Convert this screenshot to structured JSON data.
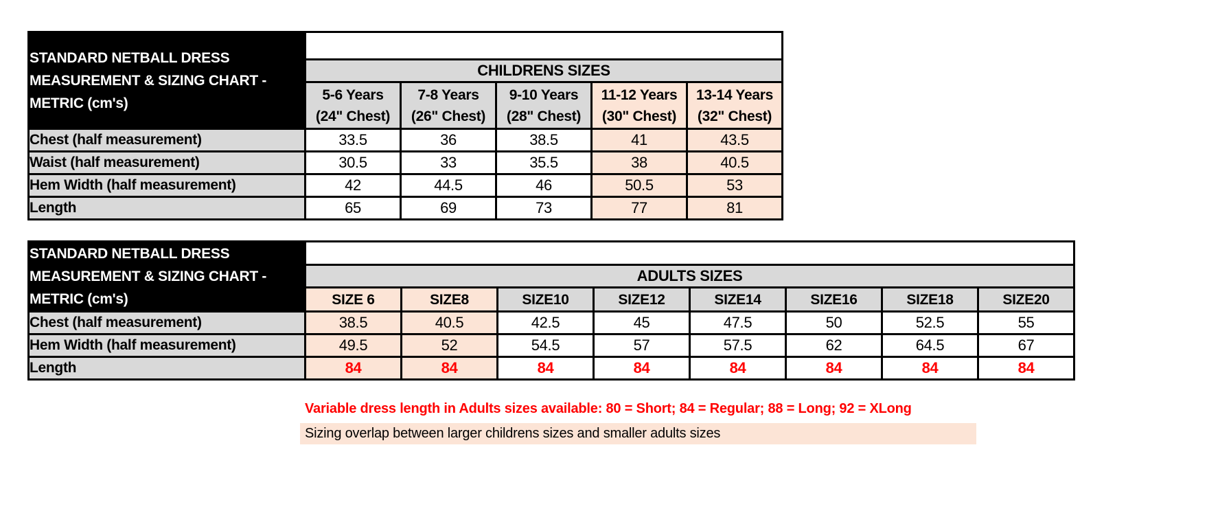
{
  "colors": {
    "header_fill": "#d9d9d9",
    "highlight_fill": "#fce4d6",
    "title_block_fill": "#000000",
    "title_block_text": "#ffffff",
    "accent_red": "#ff0000"
  },
  "children_table": {
    "corner_title": "STANDARD NETBALL DRESS MEASUREMENT & SIZING CHART - METRIC (cm's)",
    "banner": "CHILDRENS SIZES",
    "columns": [
      {
        "label": "5-6 Years\n(24\" Chest)",
        "highlight": false
      },
      {
        "label": "7-8 Years\n(26\" Chest)",
        "highlight": false
      },
      {
        "label": "9-10 Years\n(28\" Chest)",
        "highlight": false
      },
      {
        "label": "11-12 Years\n(30\" Chest)",
        "highlight": true
      },
      {
        "label": "13-14 Years\n(32\" Chest)",
        "highlight": true
      }
    ],
    "rows": [
      {
        "label": "Chest (half measurement)",
        "red": false,
        "values": [
          "33.5",
          "36",
          "38.5",
          "41",
          "43.5"
        ]
      },
      {
        "label": "Waist (half measurement)",
        "red": false,
        "values": [
          "30.5",
          "33",
          "35.5",
          "38",
          "40.5"
        ]
      },
      {
        "label": "Hem Width (half measurement)",
        "red": false,
        "values": [
          "42",
          "44.5",
          "46",
          "50.5",
          "53"
        ]
      },
      {
        "label": "Length",
        "red": false,
        "values": [
          "65",
          "69",
          "73",
          "77",
          "81"
        ]
      }
    ]
  },
  "adults_table": {
    "corner_title": "STANDARD NETBALL DRESS MEASUREMENT & SIZING CHART - METRIC (cm's)",
    "banner": "ADULTS SIZES",
    "columns": [
      {
        "label": "SIZE 6",
        "highlight": true
      },
      {
        "label": "SIZE8",
        "highlight": true
      },
      {
        "label": "SIZE10",
        "highlight": false
      },
      {
        "label": "SIZE12",
        "highlight": false
      },
      {
        "label": "SIZE14",
        "highlight": false
      },
      {
        "label": "SIZE16",
        "highlight": false
      },
      {
        "label": "SIZE18",
        "highlight": false
      },
      {
        "label": "SIZE20",
        "highlight": false
      }
    ],
    "rows": [
      {
        "label": "Chest (half measurement)",
        "red": false,
        "values": [
          "38.5",
          "40.5",
          "42.5",
          "45",
          "47.5",
          "50",
          "52.5",
          "55"
        ]
      },
      {
        "label": "Hem Width (half measurement)",
        "red": false,
        "values": [
          "49.5",
          "52",
          "54.5",
          "57",
          "57.5",
          "62",
          "64.5",
          "67"
        ]
      },
      {
        "label": "Length",
        "red": true,
        "values": [
          "84",
          "84",
          "84",
          "84",
          "84",
          "84",
          "84",
          "84"
        ]
      }
    ]
  },
  "notes": {
    "variable_length": "Variable dress length in Adults sizes available: 80 = Short; 84 = Regular; 88 = Long; 92 = XLong",
    "sizing_overlap": "Sizing overlap between larger childrens sizes and smaller adults sizes"
  }
}
